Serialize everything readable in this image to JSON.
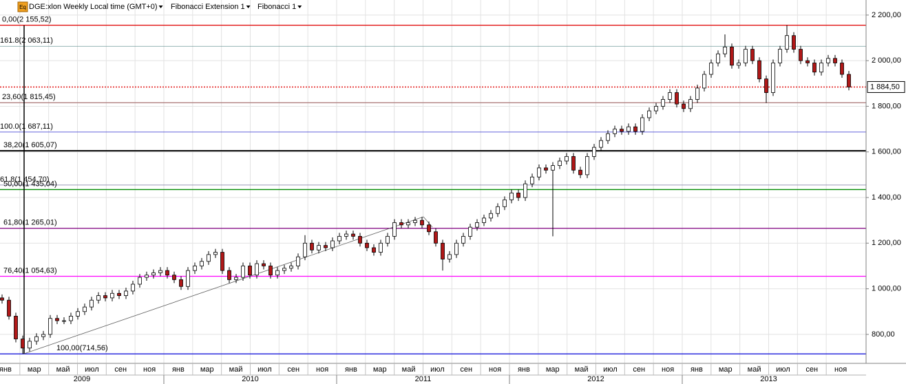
{
  "chart_data": {
    "type": "candlestick",
    "header": {
      "icon": "Eq",
      "items": [
        "DGE:xlon Weekly Local time (GMT+0)",
        "Fibonacci Extension 1",
        "Fibonacci 1"
      ]
    },
    "ylim": [
      673,
      2266
    ],
    "yticks": [
      {
        "value": 2200,
        "label": "2 200,00"
      },
      {
        "value": 2000,
        "label": "2 000,00"
      },
      {
        "value": 1800,
        "label": "1 800,00"
      },
      {
        "value": 1600,
        "label": "1 600,00"
      },
      {
        "value": 1400,
        "label": "1 400,00"
      },
      {
        "value": 1200,
        "label": "1 200,00"
      },
      {
        "value": 1000,
        "label": "1 000,00"
      },
      {
        "value": 800,
        "label": "800,00"
      }
    ],
    "grid": true,
    "years": [
      {
        "label": "2009",
        "months": [
          "янв",
          "мар",
          "май",
          "июл",
          "сен",
          "ноя"
        ]
      },
      {
        "label": "2010",
        "months": [
          "янв",
          "мар",
          "май",
          "июл",
          "сен",
          "ноя"
        ]
      },
      {
        "label": "2011",
        "months": [
          "янв",
          "мар",
          "май",
          "июл",
          "сен",
          "ноя"
        ]
      },
      {
        "label": "2012",
        "months": [
          "янв",
          "мар",
          "май",
          "июл",
          "сен",
          "ноя"
        ]
      },
      {
        "label": "2013",
        "months": [
          "янв",
          "мар",
          "май",
          "июл",
          "сен",
          "ноя"
        ]
      }
    ],
    "up_color": "#ffffff",
    "down_color": "#b01818",
    "current_price": {
      "value": 1884.5,
      "label": "1 884,50",
      "color": "#e00000"
    },
    "levels": [
      {
        "label": "0,00(2 155,52)",
        "value": 2155.52,
        "color": "#e00000"
      },
      {
        "label": "161.8(2 063,11)",
        "value": 2063.11,
        "color": "#6f9a9a"
      },
      {
        "label": "23,60(1 815,45)",
        "value": 1815.45,
        "color": "#b08080"
      },
      {
        "label": "100.0(1 687,11)",
        "value": 1687.11,
        "color": "#3030d0"
      },
      {
        "label": "38,20(1 605,07)",
        "value": 1605.07,
        "color": "#000000"
      },
      {
        "label": "61.8(1 454,70)",
        "value": 1454.7,
        "color": "#7878a0"
      },
      {
        "label": "50,00(1 435,04)",
        "value": 1435.04,
        "color": "#008a00"
      },
      {
        "label": "61,80(1 265,01)",
        "value": 1265.01,
        "color": "#800080"
      },
      {
        "label": "76,40(1 054,63)",
        "value": 1054.63,
        "color": "#ff00ff"
      },
      {
        "label": "100,00(714,56)",
        "value": 714.56,
        "color": "#0000d8"
      }
    ],
    "open": [
      960,
      950,
      880,
      780,
      740,
      770,
      790,
      800,
      870,
      860,
      860,
      880,
      900,
      920,
      950,
      970,
      960,
      980,
      970,
      990,
      1020,
      1050,
      1060,
      1070,
      1080,
      1060,
      1040,
      1010,
      1080,
      1100,
      1120,
      1150,
      1160,
      1080,
      1040,
      1050,
      1100,
      1060,
      1110,
      1100,
      1060,
      1080,
      1090,
      1100,
      1140,
      1200,
      1170,
      1190,
      1180,
      1210,
      1230,
      1240,
      1230,
      1200,
      1180,
      1160,
      1200,
      1230,
      1290,
      1280,
      1290,
      1300,
      1280,
      1250,
      1200,
      1130,
      1150,
      1200,
      1230,
      1270,
      1290,
      1310,
      1330,
      1360,
      1390,
      1420,
      1400,
      1460,
      1490,
      1530,
      1520,
      1540,
      1560,
      1580,
      1520,
      1500,
      1580,
      1620,
      1650,
      1680,
      1700,
      1690,
      1710,
      1690,
      1750,
      1780,
      1800,
      1830,
      1860,
      1810,
      1790,
      1830,
      1880,
      1940,
      1990,
      2030,
      2060,
      1980,
      1990,
      2050,
      2000,
      1920,
      1860,
      1990,
      2050,
      2110,
      2050,
      2000,
      1990,
      1950,
      1990,
      2010,
      1990,
      1940
    ],
    "high": [
      975,
      965,
      895,
      795,
      785,
      805,
      815,
      885,
      885,
      875,
      895,
      915,
      935,
      965,
      985,
      985,
      995,
      995,
      1005,
      1035,
      1065,
      1075,
      1085,
      1095,
      1095,
      1075,
      1055,
      1095,
      1115,
      1135,
      1165,
      1175,
      1175,
      1095,
      1065,
      1115,
      1115,
      1125,
      1125,
      1115,
      1095,
      1105,
      1115,
      1155,
      1235,
      1215,
      1205,
      1205,
      1225,
      1245,
      1255,
      1255,
      1245,
      1215,
      1195,
      1215,
      1245,
      1305,
      1305,
      1305,
      1315,
      1315,
      1295,
      1265,
      1215,
      1165,
      1215,
      1245,
      1285,
      1305,
      1325,
      1345,
      1375,
      1405,
      1435,
      1435,
      1475,
      1505,
      1545,
      1545,
      1555,
      1575,
      1595,
      1595,
      1535,
      1595,
      1635,
      1665,
      1695,
      1715,
      1715,
      1725,
      1725,
      1765,
      1795,
      1815,
      1845,
      1875,
      1875,
      1825,
      1845,
      1895,
      1955,
      2005,
      2045,
      2115,
      2075,
      2005,
      2065,
      2065,
      2015,
      1935,
      2005,
      2065,
      2155.52,
      2125,
      2065,
      2015,
      2005,
      2005,
      2025,
      2025,
      2005,
      1955
    ],
    "low": [
      935,
      865,
      765,
      714.56,
      725,
      755,
      775,
      785,
      845,
      845,
      845,
      865,
      885,
      905,
      935,
      945,
      945,
      955,
      955,
      975,
      1005,
      1035,
      1045,
      1055,
      1045,
      1025,
      995,
      995,
      1065,
      1085,
      1105,
      1135,
      1065,
      1025,
      1025,
      1035,
      1045,
      1045,
      1085,
      1045,
      1045,
      1065,
      1075,
      1085,
      1125,
      1155,
      1155,
      1165,
      1165,
      1195,
      1215,
      1215,
      1185,
      1165,
      1145,
      1145,
      1185,
      1215,
      1265,
      1265,
      1275,
      1265,
      1235,
      1185,
      1080,
      1115,
      1135,
      1185,
      1215,
      1255,
      1275,
      1295,
      1315,
      1345,
      1375,
      1385,
      1385,
      1445,
      1475,
      1505,
      1230,
      1525,
      1545,
      1505,
      1485,
      1485,
      1565,
      1605,
      1635,
      1665,
      1675,
      1675,
      1675,
      1675,
      1735,
      1765,
      1785,
      1815,
      1795,
      1775,
      1775,
      1815,
      1865,
      1925,
      1975,
      2015,
      1965,
      1965,
      1975,
      1985,
      1905,
      1815,
      1845,
      1975,
      2035,
      2035,
      1985,
      1975,
      1935,
      1935,
      1975,
      1975,
      1925,
      1870
    ],
    "close": [
      950,
      880,
      780,
      740,
      770,
      790,
      800,
      870,
      860,
      860,
      880,
      900,
      920,
      950,
      970,
      960,
      980,
      970,
      990,
      1020,
      1050,
      1060,
      1070,
      1080,
      1060,
      1040,
      1010,
      1080,
      1100,
      1120,
      1150,
      1160,
      1080,
      1040,
      1050,
      1100,
      1060,
      1110,
      1100,
      1060,
      1080,
      1090,
      1100,
      1140,
      1200,
      1170,
      1190,
      1180,
      1210,
      1230,
      1240,
      1230,
      1200,
      1180,
      1160,
      1200,
      1230,
      1290,
      1280,
      1290,
      1300,
      1280,
      1250,
      1200,
      1130,
      1150,
      1200,
      1230,
      1270,
      1290,
      1310,
      1330,
      1360,
      1390,
      1420,
      1400,
      1460,
      1490,
      1530,
      1520,
      1540,
      1560,
      1580,
      1520,
      1500,
      1580,
      1620,
      1650,
      1680,
      1700,
      1690,
      1710,
      1690,
      1750,
      1780,
      1800,
      1830,
      1860,
      1810,
      1790,
      1830,
      1880,
      1940,
      1990,
      2030,
      2060,
      1980,
      1990,
      2050,
      2000,
      1920,
      1860,
      1990,
      2050,
      2110,
      2050,
      2000,
      1990,
      1950,
      1990,
      2010,
      1990,
      1940,
      1884.5
    ]
  }
}
